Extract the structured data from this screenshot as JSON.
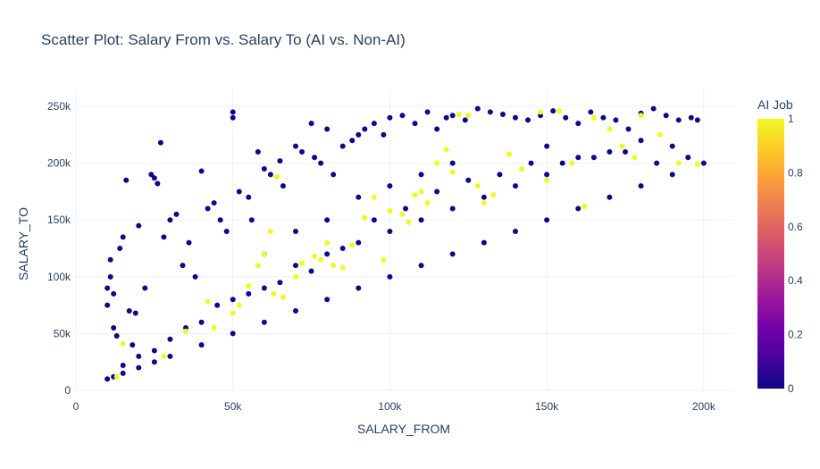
{
  "chart_data": {
    "type": "scatter",
    "title": "Scatter Plot: Salary From vs. Salary To (AI vs. Non-AI)",
    "xlabel": "SALARY_FROM",
    "ylabel": "SALARY_TO",
    "xlim": [
      0,
      210000
    ],
    "ylim": [
      0,
      265000
    ],
    "x_ticks": [
      0,
      50000,
      100000,
      150000,
      200000
    ],
    "x_tick_labels": [
      "0",
      "50k",
      "100k",
      "150k",
      "200k"
    ],
    "y_ticks": [
      0,
      50000,
      100000,
      150000,
      200000,
      250000
    ],
    "y_tick_labels": [
      "0",
      "50k",
      "100k",
      "150k",
      "200k",
      "250k"
    ],
    "grid": true,
    "color_variable": "AI Job",
    "colorbar": {
      "title": "AI Job",
      "range": [
        0,
        1
      ],
      "ticks": [
        0,
        0.2,
        0.4,
        0.6,
        0.8,
        1
      ],
      "tick_labels": [
        "0",
        "0.2",
        "0.4",
        "0.6",
        "0.8",
        "1"
      ],
      "colorscale": [
        "#0d0887",
        "#46039f",
        "#7201a8",
        "#9c179e",
        "#bd3786",
        "#d8576b",
        "#ed7953",
        "#fb9f3a",
        "#fdca26",
        "#f0f921"
      ]
    },
    "colors": {
      "non_ai": "#0d0887",
      "ai": "#f0f921"
    },
    "series": [
      {
        "values_note": "",
        "points": [
          [
            10000,
            10000,
            0
          ],
          [
            12000,
            12000,
            0
          ],
          [
            15000,
            15000,
            0
          ],
          [
            20000,
            20000,
            0
          ],
          [
            25000,
            25000,
            0
          ],
          [
            30000,
            30000,
            0
          ],
          [
            40000,
            40000,
            0
          ],
          [
            50000,
            50000,
            0
          ],
          [
            60000,
            60000,
            0
          ],
          [
            70000,
            70000,
            0
          ],
          [
            80000,
            80000,
            0
          ],
          [
            90000,
            90000,
            0
          ],
          [
            100000,
            100000,
            0
          ],
          [
            110000,
            110000,
            0
          ],
          [
            120000,
            120000,
            0
          ],
          [
            130000,
            130000,
            0
          ],
          [
            140000,
            140000,
            0
          ],
          [
            150000,
            150000,
            0
          ],
          [
            160000,
            160000,
            0
          ],
          [
            170000,
            170000,
            0
          ],
          [
            180000,
            180000,
            0
          ],
          [
            190000,
            190000,
            0
          ],
          [
            200000,
            200000,
            0
          ],
          [
            10000,
            75000,
            0
          ],
          [
            10000,
            90000,
            0
          ],
          [
            11000,
            100000,
            0
          ],
          [
            11000,
            115000,
            0
          ],
          [
            12000,
            85000,
            0
          ],
          [
            12000,
            55000,
            0
          ],
          [
            13000,
            48000,
            0
          ],
          [
            14000,
            125000,
            0
          ],
          [
            15000,
            135000,
            0
          ],
          [
            16000,
            185000,
            0
          ],
          [
            17000,
            70000,
            0
          ],
          [
            18000,
            40000,
            0
          ],
          [
            19000,
            68000,
            0
          ],
          [
            20000,
            145000,
            0
          ],
          [
            22000,
            90000,
            0
          ],
          [
            24000,
            190000,
            0
          ],
          [
            25000,
            187000,
            0
          ],
          [
            26000,
            182000,
            0
          ],
          [
            27000,
            218000,
            0
          ],
          [
            28000,
            135000,
            0
          ],
          [
            30000,
            150000,
            0
          ],
          [
            32000,
            155000,
            0
          ],
          [
            34000,
            110000,
            0
          ],
          [
            36000,
            130000,
            0
          ],
          [
            38000,
            100000,
            0
          ],
          [
            40000,
            193000,
            0
          ],
          [
            42000,
            160000,
            0
          ],
          [
            44000,
            165000,
            0
          ],
          [
            46000,
            150000,
            0
          ],
          [
            48000,
            140000,
            0
          ],
          [
            50000,
            245000,
            0
          ],
          [
            50000,
            240000,
            0
          ],
          [
            52000,
            175000,
            0
          ],
          [
            55000,
            170000,
            0
          ],
          [
            56000,
            150000,
            0
          ],
          [
            58000,
            210000,
            0
          ],
          [
            60000,
            195000,
            0
          ],
          [
            62000,
            190000,
            0
          ],
          [
            65000,
            202000,
            0
          ],
          [
            66000,
            180000,
            0
          ],
          [
            70000,
            215000,
            0
          ],
          [
            72000,
            210000,
            0
          ],
          [
            75000,
            235000,
            0
          ],
          [
            76000,
            205000,
            0
          ],
          [
            78000,
            200000,
            0
          ],
          [
            80000,
            230000,
            0
          ],
          [
            82000,
            190000,
            0
          ],
          [
            85000,
            215000,
            0
          ],
          [
            88000,
            220000,
            0
          ],
          [
            90000,
            225000,
            0
          ],
          [
            92000,
            230000,
            0
          ],
          [
            95000,
            235000,
            0
          ],
          [
            98000,
            225000,
            0
          ],
          [
            100000,
            240000,
            0
          ],
          [
            104000,
            242000,
            0
          ],
          [
            108000,
            235000,
            0
          ],
          [
            112000,
            245000,
            0
          ],
          [
            115000,
            230000,
            0
          ],
          [
            118000,
            240000,
            0
          ],
          [
            120000,
            242000,
            0
          ],
          [
            124000,
            238000,
            0
          ],
          [
            128000,
            248000,
            0
          ],
          [
            132000,
            245000,
            0
          ],
          [
            136000,
            243000,
            0
          ],
          [
            140000,
            240000,
            0
          ],
          [
            144000,
            238000,
            0
          ],
          [
            148000,
            242000,
            0
          ],
          [
            152000,
            246000,
            0
          ],
          [
            156000,
            240000,
            0
          ],
          [
            160000,
            235000,
            0
          ],
          [
            164000,
            245000,
            0
          ],
          [
            168000,
            240000,
            0
          ],
          [
            172000,
            238000,
            0
          ],
          [
            176000,
            230000,
            0
          ],
          [
            180000,
            244000,
            0
          ],
          [
            184000,
            248000,
            0
          ],
          [
            188000,
            242000,
            0
          ],
          [
            192000,
            238000,
            0
          ],
          [
            196000,
            240000,
            0
          ],
          [
            198000,
            238000,
            0
          ],
          [
            150000,
            215000,
            0
          ],
          [
            160000,
            205000,
            0
          ],
          [
            170000,
            210000,
            0
          ],
          [
            180000,
            220000,
            0
          ],
          [
            190000,
            215000,
            0
          ],
          [
            195000,
            205000,
            0
          ],
          [
            185000,
            200000,
            0
          ],
          [
            175000,
            210000,
            0
          ],
          [
            165000,
            205000,
            0
          ],
          [
            155000,
            200000,
            0
          ],
          [
            60000,
            90000,
            0
          ],
          [
            70000,
            110000,
            0
          ],
          [
            80000,
            120000,
            0
          ],
          [
            90000,
            130000,
            0
          ],
          [
            100000,
            140000,
            0
          ],
          [
            110000,
            150000,
            0
          ],
          [
            120000,
            160000,
            0
          ],
          [
            130000,
            170000,
            0
          ],
          [
            140000,
            180000,
            0
          ],
          [
            150000,
            190000,
            0
          ],
          [
            55000,
            85000,
            0
          ],
          [
            65000,
            95000,
            0
          ],
          [
            75000,
            105000,
            0
          ],
          [
            85000,
            125000,
            0
          ],
          [
            95000,
            150000,
            0
          ],
          [
            105000,
            160000,
            0
          ],
          [
            115000,
            175000,
            0
          ],
          [
            125000,
            185000,
            0
          ],
          [
            135000,
            190000,
            0
          ],
          [
            145000,
            200000,
            0
          ],
          [
            40000,
            60000,
            0
          ],
          [
            45000,
            75000,
            0
          ],
          [
            50000,
            80000,
            0
          ],
          [
            35000,
            55000,
            0
          ],
          [
            30000,
            45000,
            0
          ],
          [
            25000,
            35000,
            0
          ],
          [
            20000,
            30000,
            0
          ],
          [
            15000,
            22000,
            0
          ],
          [
            60000,
            120000,
            0
          ],
          [
            70000,
            140000,
            0
          ],
          [
            80000,
            150000,
            0
          ],
          [
            90000,
            170000,
            0
          ],
          [
            100000,
            180000,
            0
          ],
          [
            110000,
            190000,
            0
          ],
          [
            120000,
            200000,
            0
          ],
          [
            15000,
            41000,
            1
          ],
          [
            13000,
            12000,
            1
          ],
          [
            28000,
            30000,
            1
          ],
          [
            35000,
            52000,
            1
          ],
          [
            42000,
            78000,
            1
          ],
          [
            44000,
            55000,
            1
          ],
          [
            50000,
            68000,
            1
          ],
          [
            52000,
            75000,
            1
          ],
          [
            55000,
            92000,
            1
          ],
          [
            58000,
            110000,
            1
          ],
          [
            60000,
            120000,
            1
          ],
          [
            62000,
            140000,
            1
          ],
          [
            63000,
            85000,
            1
          ],
          [
            64000,
            188000,
            1
          ],
          [
            66000,
            82000,
            1
          ],
          [
            70000,
            100000,
            1
          ],
          [
            72000,
            112000,
            1
          ],
          [
            76000,
            118000,
            1
          ],
          [
            78000,
            115000,
            1
          ],
          [
            80000,
            130000,
            1
          ],
          [
            82000,
            110000,
            1
          ],
          [
            85000,
            108000,
            1
          ],
          [
            88000,
            128000,
            1
          ],
          [
            92000,
            152000,
            1
          ],
          [
            95000,
            170000,
            1
          ],
          [
            98000,
            115000,
            1
          ],
          [
            100000,
            158000,
            1
          ],
          [
            104000,
            155000,
            1
          ],
          [
            106000,
            148000,
            1
          ],
          [
            108000,
            172000,
            1
          ],
          [
            110000,
            175000,
            1
          ],
          [
            112000,
            165000,
            1
          ],
          [
            115000,
            200000,
            1
          ],
          [
            118000,
            212000,
            1
          ],
          [
            120000,
            192000,
            1
          ],
          [
            122000,
            243000,
            1
          ],
          [
            125000,
            242000,
            1
          ],
          [
            128000,
            180000,
            1
          ],
          [
            130000,
            165000,
            1
          ],
          [
            133000,
            172000,
            1
          ],
          [
            138000,
            208000,
            1
          ],
          [
            142000,
            195000,
            1
          ],
          [
            148000,
            245000,
            1
          ],
          [
            150000,
            185000,
            1
          ],
          [
            154000,
            246000,
            1
          ],
          [
            158000,
            200000,
            1
          ],
          [
            162000,
            162000,
            1
          ],
          [
            165000,
            240000,
            1
          ],
          [
            170000,
            230000,
            1
          ],
          [
            174000,
            215000,
            1
          ],
          [
            178000,
            205000,
            1
          ],
          [
            180000,
            242000,
            1
          ],
          [
            186000,
            225000,
            1
          ],
          [
            192000,
            200000,
            1
          ],
          [
            198000,
            199000,
            1
          ]
        ]
      }
    ]
  }
}
